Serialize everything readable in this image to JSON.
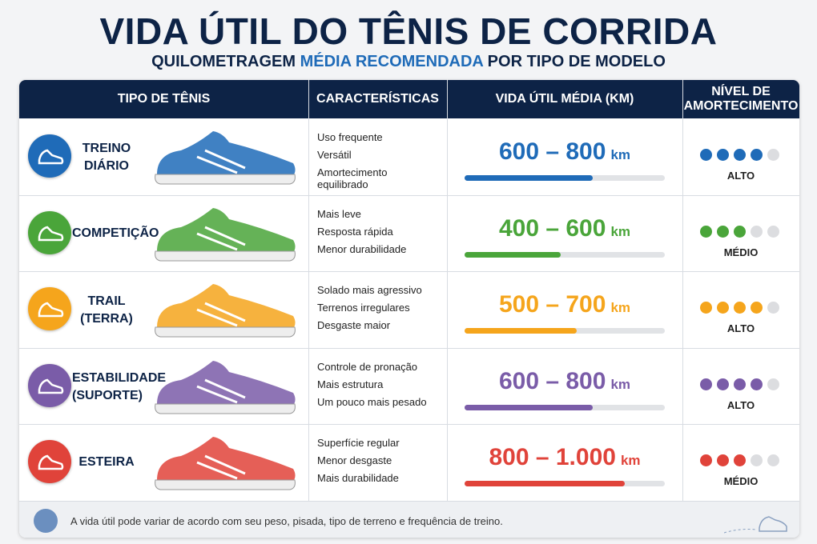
{
  "header": {
    "title": "VIDA ÚTIL DO TÊNIS DE CORRIDA",
    "subtitle": [
      "QUILOMETRAGEM ",
      "MÉDIA RECOMENDADA",
      " POR TIPO DE MODELO"
    ]
  },
  "table": {
    "columns": [
      "TIPO DE TÊNIS",
      "CARACTERÍSTICAS",
      "VIDA ÚTIL MÉDIA (KM)",
      "NÍVEL DE AMORTECIMENTO"
    ],
    "rows": [
      {
        "type": [
          "TREINO",
          "DIÁRIO"
        ],
        "color": "#1f6bb8",
        "features": [
          "Uso frequente",
          "Versátil",
          "Amortecimento equilibrado"
        ],
        "range": "600 – 800",
        "unit": "km",
        "max": 800,
        "level": 4,
        "level_label": "ALTO"
      },
      {
        "type": [
          "COMPETIÇÃO"
        ],
        "color": "#4aa53a",
        "features": [
          "Mais leve",
          "Resposta rápida",
          "Menor durabilidade"
        ],
        "range": "400 – 600",
        "unit": "km",
        "max": 600,
        "level": 3,
        "level_label": "MÉDIO"
      },
      {
        "type": [
          "TRAIL",
          "(TERRA)"
        ],
        "color": "#f5a51c",
        "features": [
          "Solado mais agressivo",
          "Terrenos irregulares",
          "Desgaste maior"
        ],
        "range": "500 – 700",
        "unit": "km",
        "max": 700,
        "level": 4,
        "level_label": "ALTO"
      },
      {
        "type": [
          "ESTABILIDADE",
          "(SUPORTE)"
        ],
        "color": "#7a5ca8",
        "features": [
          "Controle de pronação",
          "Mais estrutura",
          "Um pouco mais pesado"
        ],
        "range": "600 – 800",
        "unit": "km",
        "max": 800,
        "level": 4,
        "level_label": "ALTO"
      },
      {
        "type": [
          "ESTEIRA"
        ],
        "color": "#e0433a",
        "features": [
          "Superfície regular",
          "Menor desgaste",
          "Mais durabilidade"
        ],
        "range": "800 – 1.000",
        "unit": "km",
        "max": 1000,
        "level": 3,
        "level_label": "MÉDIO"
      }
    ]
  },
  "footer": {
    "note": "A vida útil pode variar de acordo com seu peso, pisada, tipo de terreno e frequência de treino."
  }
}
